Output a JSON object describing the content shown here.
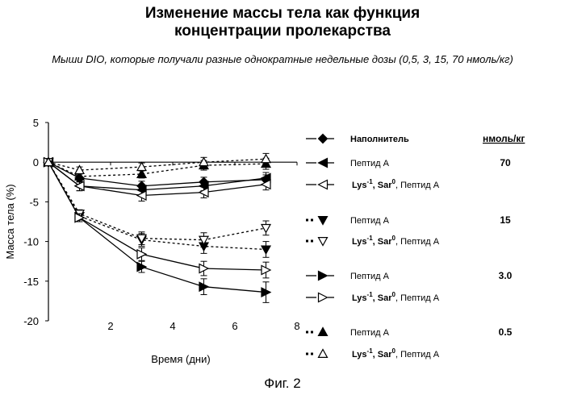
{
  "title_line1": "Изменение массы тела как функция",
  "title_line2": "концентрации пролекарства",
  "subtitle": "Мыши DIO, которые получали разные однократные недельные дозы (0,5, 3, 15, 70 нмоль/кг)",
  "figure_caption": "Фиг. 2",
  "legend": {
    "unit_header": "нмоль/кг",
    "entries": [
      {
        "name": "Наполнитель",
        "dose": "",
        "marker": "diamond",
        "filled": true,
        "dashed": false
      },
      {
        "name": "Пептид A",
        "dose": "70",
        "marker": "tri-left",
        "filled": true,
        "dashed": false
      },
      {
        "name": "Lys-1, Sar0, Пептид A",
        "dose": "",
        "marker": "tri-left",
        "filled": false,
        "dashed": false
      },
      {
        "name": "Пептид A",
        "dose": "15",
        "marker": "tri-down",
        "filled": true,
        "dashed": true
      },
      {
        "name": "Lys-1, Sar0, Пептид A",
        "dose": "",
        "marker": "tri-down",
        "filled": false,
        "dashed": true
      },
      {
        "name": "Пептид A",
        "dose": "3.0",
        "marker": "tri-right",
        "filled": true,
        "dashed": false
      },
      {
        "name": "Lys-1, Sar0, Пептид A",
        "dose": "",
        "marker": "tri-right",
        "filled": false,
        "dashed": false
      },
      {
        "name": "Пептид A",
        "dose": "0.5",
        "marker": "tri-up",
        "filled": true,
        "dashed": true
      },
      {
        "name": "Lys-1, Sar0, Пептид A",
        "dose": "",
        "marker": "tri-up",
        "filled": false,
        "dashed": true
      }
    ]
  },
  "chart_data": {
    "type": "line",
    "xlabel": "Время (дни)",
    "ylabel": "Масса тела (%)",
    "xlim": [
      0,
      8
    ],
    "ylim": [
      -20,
      5
    ],
    "xticks": [
      2,
      4,
      6,
      8
    ],
    "yticks": [
      5,
      0,
      -5,
      -10,
      -15,
      -20
    ],
    "x": [
      0,
      1,
      3,
      5,
      7
    ],
    "series": [
      {
        "name": "Наполнитель",
        "marker": "diamond",
        "filled": true,
        "dashed": false,
        "values": [
          0,
          -2.0,
          -3.0,
          -2.5,
          -2.2
        ],
        "err": [
          0,
          0.5,
          0.6,
          0.6,
          0.6
        ]
      },
      {
        "name": "Пептид A 70",
        "marker": "tri-left",
        "filled": true,
        "dashed": false,
        "values": [
          0,
          -3.0,
          -3.5,
          -3.0,
          -2.0
        ],
        "err": [
          0,
          0.6,
          0.6,
          0.6,
          0.7
        ]
      },
      {
        "name": "Lys-1, Sar0, Пептид A 70",
        "marker": "tri-left",
        "filled": false,
        "dashed": false,
        "values": [
          0,
          -3.0,
          -4.2,
          -3.8,
          -2.8
        ],
        "err": [
          0,
          0.6,
          0.7,
          0.7,
          0.7
        ]
      },
      {
        "name": "Пептид A 15",
        "marker": "tri-down",
        "filled": true,
        "dashed": true,
        "values": [
          0,
          -6.8,
          -9.8,
          -10.6,
          -11.0
        ],
        "err": [
          0,
          0.5,
          0.8,
          0.9,
          1.0
        ]
      },
      {
        "name": "Lys-1, Sar0, Пептид A 15",
        "marker": "tri-down",
        "filled": false,
        "dashed": true,
        "values": [
          0,
          -6.5,
          -9.6,
          -9.8,
          -8.3
        ],
        "err": [
          0,
          0.5,
          0.8,
          0.9,
          0.9
        ]
      },
      {
        "name": "Пептид A 3.0",
        "marker": "tri-right",
        "filled": true,
        "dashed": false,
        "values": [
          0,
          -7.0,
          -13.2,
          -15.7,
          -16.4
        ],
        "err": [
          0,
          0.5,
          0.7,
          1.0,
          1.3
        ]
      },
      {
        "name": "Lys-1, Sar0, Пептид A 3.0",
        "marker": "tri-right",
        "filled": false,
        "dashed": false,
        "values": [
          0,
          -7.0,
          -11.6,
          -13.4,
          -13.6
        ],
        "err": [
          0,
          0.5,
          0.8,
          0.9,
          1.0
        ]
      },
      {
        "name": "Пептид A 0.5",
        "marker": "tri-up",
        "filled": true,
        "dashed": true,
        "values": [
          0,
          -1.8,
          -1.5,
          -0.4,
          -0.2
        ],
        "err": [
          0,
          0.4,
          0.5,
          0.6,
          0.7
        ]
      },
      {
        "name": "Lys-1, Sar0, Пептид A 0.5",
        "marker": "tri-up",
        "filled": false,
        "dashed": true,
        "values": [
          0,
          -1.0,
          -0.6,
          0.0,
          0.4
        ],
        "err": [
          0,
          0.4,
          0.5,
          0.6,
          0.7
        ]
      }
    ]
  }
}
